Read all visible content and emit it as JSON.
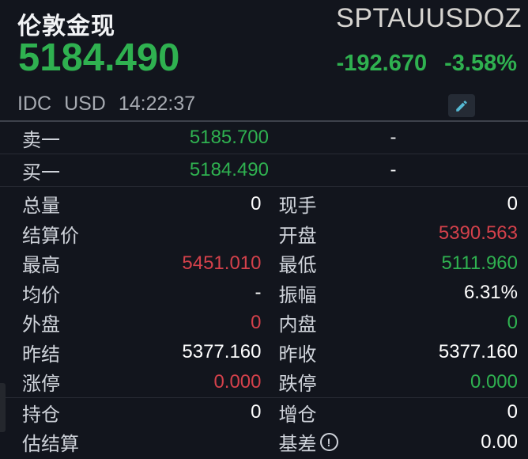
{
  "header": {
    "name": "伦敦金现",
    "symbol": "SPTAUUSDOZ",
    "price": "5184.490",
    "change": "-192.670",
    "change_pct": "-3.58%",
    "exchange": "IDC",
    "currency": "USD",
    "time": "14:22:37",
    "edit_icon": "pencil-icon"
  },
  "quote_rows": [
    {
      "key": "sell-1",
      "label": "卖一",
      "price": "5185.700",
      "price_color": "green",
      "volume": "-"
    },
    {
      "key": "buy-1",
      "label": "买一",
      "price": "5184.490",
      "price_color": "green",
      "volume": "-"
    }
  ],
  "stats_rows": [
    {
      "left": {
        "key": "total-volume",
        "label": "总量",
        "value": "0",
        "color": "white"
      },
      "right": {
        "key": "current-hand",
        "label": "现手",
        "value": "0",
        "color": "white"
      },
      "divider_after": false
    },
    {
      "left": {
        "key": "settlement-price",
        "label": "结算价",
        "value": "",
        "color": "white"
      },
      "right": {
        "key": "open",
        "label": "开盘",
        "value": "5390.563",
        "color": "red"
      },
      "divider_after": false
    },
    {
      "left": {
        "key": "high",
        "label": "最高",
        "value": "5451.010",
        "color": "red"
      },
      "right": {
        "key": "low",
        "label": "最低",
        "value": "5111.960",
        "color": "green"
      },
      "divider_after": false
    },
    {
      "left": {
        "key": "avg-price",
        "label": "均价",
        "value": "-",
        "color": "white"
      },
      "right": {
        "key": "amplitude",
        "label": "振幅",
        "value": "6.31%",
        "color": "white"
      },
      "divider_after": false
    },
    {
      "left": {
        "key": "outer-volume",
        "label": "外盘",
        "value": "0",
        "color": "red"
      },
      "right": {
        "key": "inner-volume",
        "label": "内盘",
        "value": "0",
        "color": "green"
      },
      "divider_after": false
    },
    {
      "left": {
        "key": "prev-settlement",
        "label": "昨结",
        "value": "5377.160",
        "color": "white"
      },
      "right": {
        "key": "prev-close",
        "label": "昨收",
        "value": "5377.160",
        "color": "white"
      },
      "divider_after": false
    },
    {
      "left": {
        "key": "limit-up",
        "label": "涨停",
        "value": "0.000",
        "color": "red"
      },
      "right": {
        "key": "limit-down",
        "label": "跌停",
        "value": "0.000",
        "color": "green"
      },
      "divider_after": true
    },
    {
      "left": {
        "key": "open-interest",
        "label": "持仓",
        "value": "0",
        "color": "white"
      },
      "right": {
        "key": "position-increase",
        "label": "增仓",
        "value": "0",
        "color": "white"
      },
      "divider_after": false
    },
    {
      "left": {
        "key": "est-settlement",
        "label": "估结算",
        "value": "",
        "color": "white"
      },
      "right": {
        "key": "basis",
        "label": "基差",
        "value": "0.00",
        "color": "white",
        "info_icon": "info-exclamation-icon"
      },
      "divider_after": false
    }
  ],
  "colors": {
    "background": "#12151d",
    "up_red": "#d4414b",
    "down_green": "#2fb150",
    "neutral_white": "#ffffff",
    "label_gray": "#cfd3da",
    "edit_icon_cyan": "#55b9d3"
  }
}
